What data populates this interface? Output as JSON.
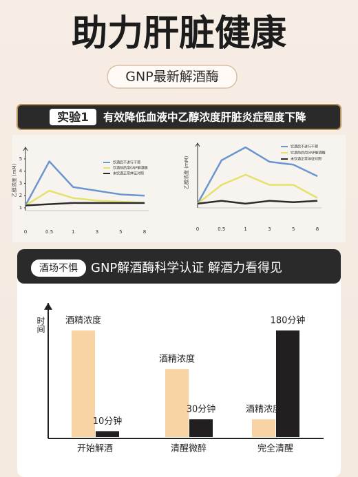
{
  "header": {
    "title": "助力肝脏健康",
    "badge": "GNP最新解酒酶"
  },
  "experiment": {
    "tag": "实验1",
    "caption": "有效降低血液中乙醇浓度肝脏炎症程度下降"
  },
  "section": {
    "tag": "酒场不惧",
    "caption": "GNP解酒酶科学认证 解酒力看得见"
  },
  "chart_data": [
    {
      "type": "line",
      "y_label": "乙醇浓度 (mM)",
      "categories": [
        "0",
        "0.5",
        "1",
        "3",
        "5",
        "8"
      ],
      "ylim": [
        1,
        5.5
      ],
      "yticks": [
        1,
        2,
        3,
        4,
        5
      ],
      "series": [
        {
          "name": "饮酒后不进行干预",
          "color": "#6a95cf",
          "values": [
            1.2,
            4.8,
            2.7,
            2.4,
            2.1,
            2.0
          ]
        },
        {
          "name": "饮酒前后用GNP解酒酶",
          "color": "#e4e26a",
          "values": [
            1.2,
            2.4,
            1.8,
            1.6,
            1.5,
            1.4
          ]
        },
        {
          "name": "未饮酒正常体征对照",
          "color": "#2a2a2a",
          "values": [
            1.2,
            1.3,
            1.4,
            1.4,
            1.4,
            1.4
          ]
        }
      ]
    },
    {
      "type": "line",
      "y_label": "乙醇浓度 (mM)",
      "categories": [
        "0",
        "0.5",
        "1",
        "3",
        "5",
        "8"
      ],
      "ylim": [
        1,
        5.5
      ],
      "series": [
        {
          "name": "饮酒后不进行干预",
          "color": "#6a95cf",
          "values": [
            1.1,
            4.1,
            5.0,
            4.0,
            3.8,
            3.0
          ]
        },
        {
          "name": "饮酒前后用GNP解酒酶",
          "color": "#e4e26a",
          "values": [
            1.1,
            2.4,
            3.1,
            2.4,
            2.4,
            1.5
          ]
        },
        {
          "name": "未饮酒正常体征对照",
          "color": "#2a2a2a",
          "values": [
            1.1,
            1.3,
            1.1,
            1.3,
            1.2,
            1.3
          ]
        }
      ]
    },
    {
      "type": "bar",
      "y_label": "时间",
      "categories": [
        "开始解酒",
        "清醒微醉",
        "完全清醒"
      ],
      "ylim": [
        0,
        200
      ],
      "series": [
        {
          "name": "酒精浓度",
          "color": "#f8d4a5",
          "values": [
            180,
            115,
            30
          ]
        },
        {
          "color": "#231f20",
          "values": [
            10,
            30,
            180
          ],
          "value_labels": [
            "10分钟",
            "30分钟",
            "180分钟"
          ]
        }
      ]
    }
  ]
}
